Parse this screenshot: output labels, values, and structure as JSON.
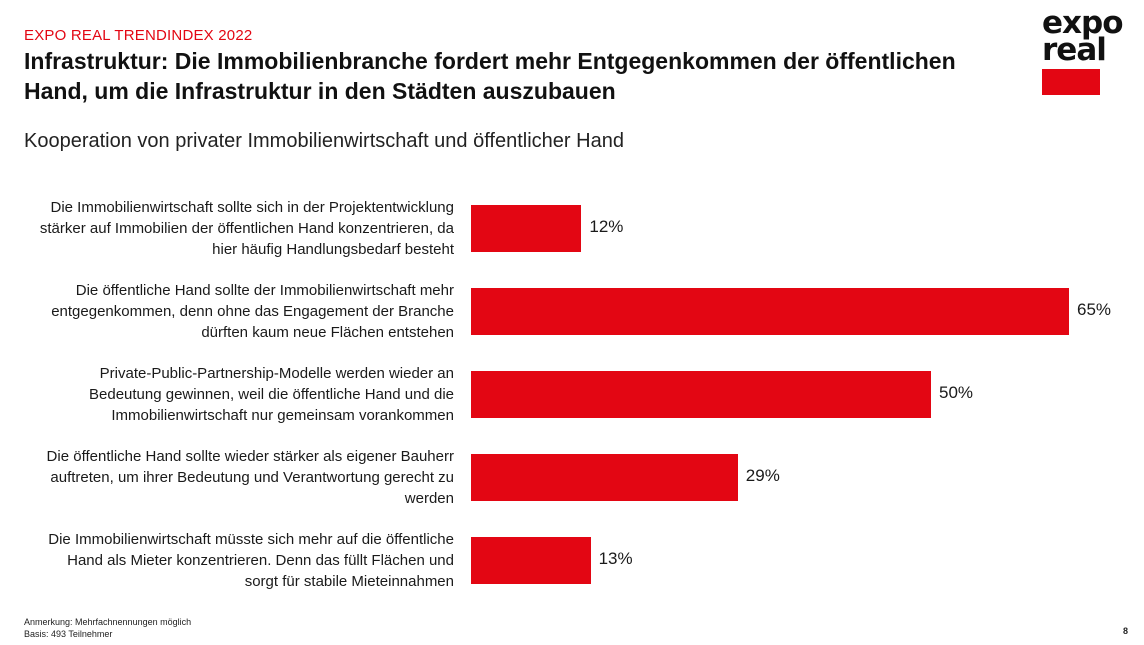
{
  "header": {
    "kicker": "EXPO REAL TRENDINDEX 2022",
    "title": "Infrastruktur: Die Immobilienbranche fordert mehr Entgegenkommen der öffentlichen Hand, um die Infrastruktur in den Städten auszubauen",
    "subtitle": "Kooperation von privater Immobilienwirtschaft und öffentlicher Hand"
  },
  "logo": {
    "line1": "expo",
    "line2": "real",
    "color": "#e30613"
  },
  "chart_data": {
    "type": "bar",
    "orientation": "horizontal",
    "title": "Kooperation von privater Immobilienwirtschaft und öffentlicher Hand",
    "categories": [
      "Die Immobilienwirtschaft sollte sich in der Projektentwicklung stärker auf Immobilien der öffentlichen Hand konzentrieren, da hier häufig Handlungsbedarf besteht",
      "Die öffentliche Hand sollte der Immobilienwirtschaft mehr entgegenkommen, denn ohne das Engagement der Branche dürften kaum neue Flächen entstehen",
      "Private-Public-Partnership-Modelle werden wieder an Bedeutung gewinnen, weil die öffentliche Hand und die Immobilienwirtschaft nur gemeinsam vorankommen",
      "Die öffentliche Hand sollte wieder stärker als eigener Bauherr auftreten, um ihrer Bedeutung und Verantwortung gerecht zu werden",
      "Die Immobilienwirtschaft müsste sich mehr auf die öffentliche Hand als Mieter konzentrieren. Denn das füllt Flächen und sorgt für stabile Mieteinnahmen"
    ],
    "values": [
      12,
      65,
      50,
      29,
      13
    ],
    "value_labels": [
      "12%",
      "65%",
      "50%",
      "29%",
      "13%"
    ],
    "unit": "%",
    "xlim": [
      0,
      65
    ],
    "bar_color": "#e30613",
    "grid": false,
    "legend": "none"
  },
  "footer": {
    "note1": "Anmerkung: Mehrfachnennungen möglich",
    "note2": "Basis: 493 Teilnehmer",
    "page": "8"
  }
}
